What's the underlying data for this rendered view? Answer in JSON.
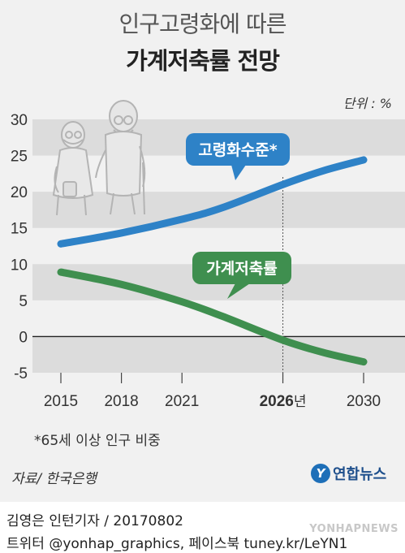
{
  "title": {
    "line1": "인구고령화에 따른",
    "line2": "가계저축률 전망"
  },
  "unit_label": "단위 : %",
  "note": "*65세 이상 인구 비중",
  "source": "자료/ 한국은행",
  "logo": {
    "mark": "Y",
    "text": "연합뉴스"
  },
  "credit": {
    "line1": "김영은 인턴기자 / 20170802",
    "line2": "트위터 @yonhap_graphics, 페이스북 tuney.kr/LeYN1"
  },
  "watermark": "YONHAPNEWS",
  "colors": {
    "aging": "#2e82c7",
    "saving": "#3f8f4f",
    "highlight": "#e0262b",
    "band": "#dcdcdc",
    "panel": "#f1f1f1"
  },
  "chart_data": {
    "type": "line",
    "x_ticks": [
      "2015",
      "2018",
      "2021",
      "2026",
      "2030"
    ],
    "x_tick_suffix": "년",
    "highlight_x": "2026",
    "ylim": [
      -5,
      30
    ],
    "y_ticks": [
      "30",
      "25",
      "20",
      "15",
      "10",
      "5",
      "0",
      "-5"
    ],
    "series": [
      {
        "name": "고령화수준*",
        "color": "#2e82c7",
        "x": [
          2015,
          2018,
          2021,
          2023,
          2026,
          2028,
          2030
        ],
        "y": [
          12.8,
          14.3,
          16.2,
          17.8,
          21.0,
          22.9,
          24.4
        ]
      },
      {
        "name": "가계저축률",
        "color": "#3f8f4f",
        "x": [
          2015,
          2018,
          2021,
          2023,
          2026,
          2028,
          2030
        ],
        "y": [
          8.9,
          7.2,
          4.8,
          2.8,
          -0.5,
          -2.2,
          -3.5
        ]
      }
    ]
  }
}
